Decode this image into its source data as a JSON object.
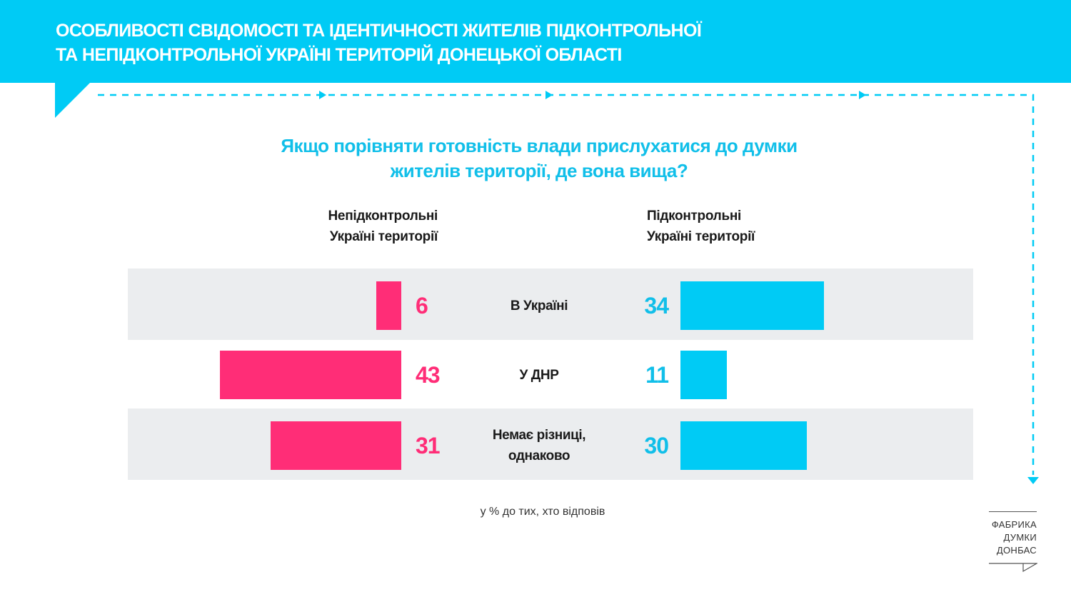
{
  "header": {
    "title_line1": "ОСОБЛИВОСТІ СВІДОМОСТІ ТА ІДЕНТИЧНОСТІ ЖИТЕЛІВ ПІДКОНТРОЛЬНОЇ",
    "title_line2": "ТА НЕПІДКОНТРОЛЬНОЇ УКРАЇНІ ТЕРИТОРІЙ ДОНЕЦЬКОЇ ОБЛАСТІ"
  },
  "colors": {
    "accent": "#00cbf5",
    "pink": "#ff2d77",
    "row_bg": "#ebedef"
  },
  "chart_data": {
    "type": "bar",
    "title_line1": "Якщо порівняти готовність влади прислухатися до думки",
    "title_line2": "жителів території, де вона вища?",
    "categories": [
      {
        "line1": "В Україні",
        "line2": ""
      },
      {
        "line1": "У ДНР",
        "line2": ""
      },
      {
        "line1": "Немає різниці,",
        "line2": "однаково"
      }
    ],
    "series": [
      {
        "name_line1": "Непідконтрольні",
        "name_line2": "Україні території",
        "values": [
          6,
          43,
          31
        ]
      },
      {
        "name_line1": "Підконтрольні",
        "name_line2": "Україні території",
        "values": [
          34,
          11,
          30
        ]
      }
    ],
    "note": "у % до тих, хто відповів"
  },
  "logo": {
    "line1": "ФАБРИКА",
    "line2": "ДУМКИ",
    "line3": "ДОНБАС"
  }
}
